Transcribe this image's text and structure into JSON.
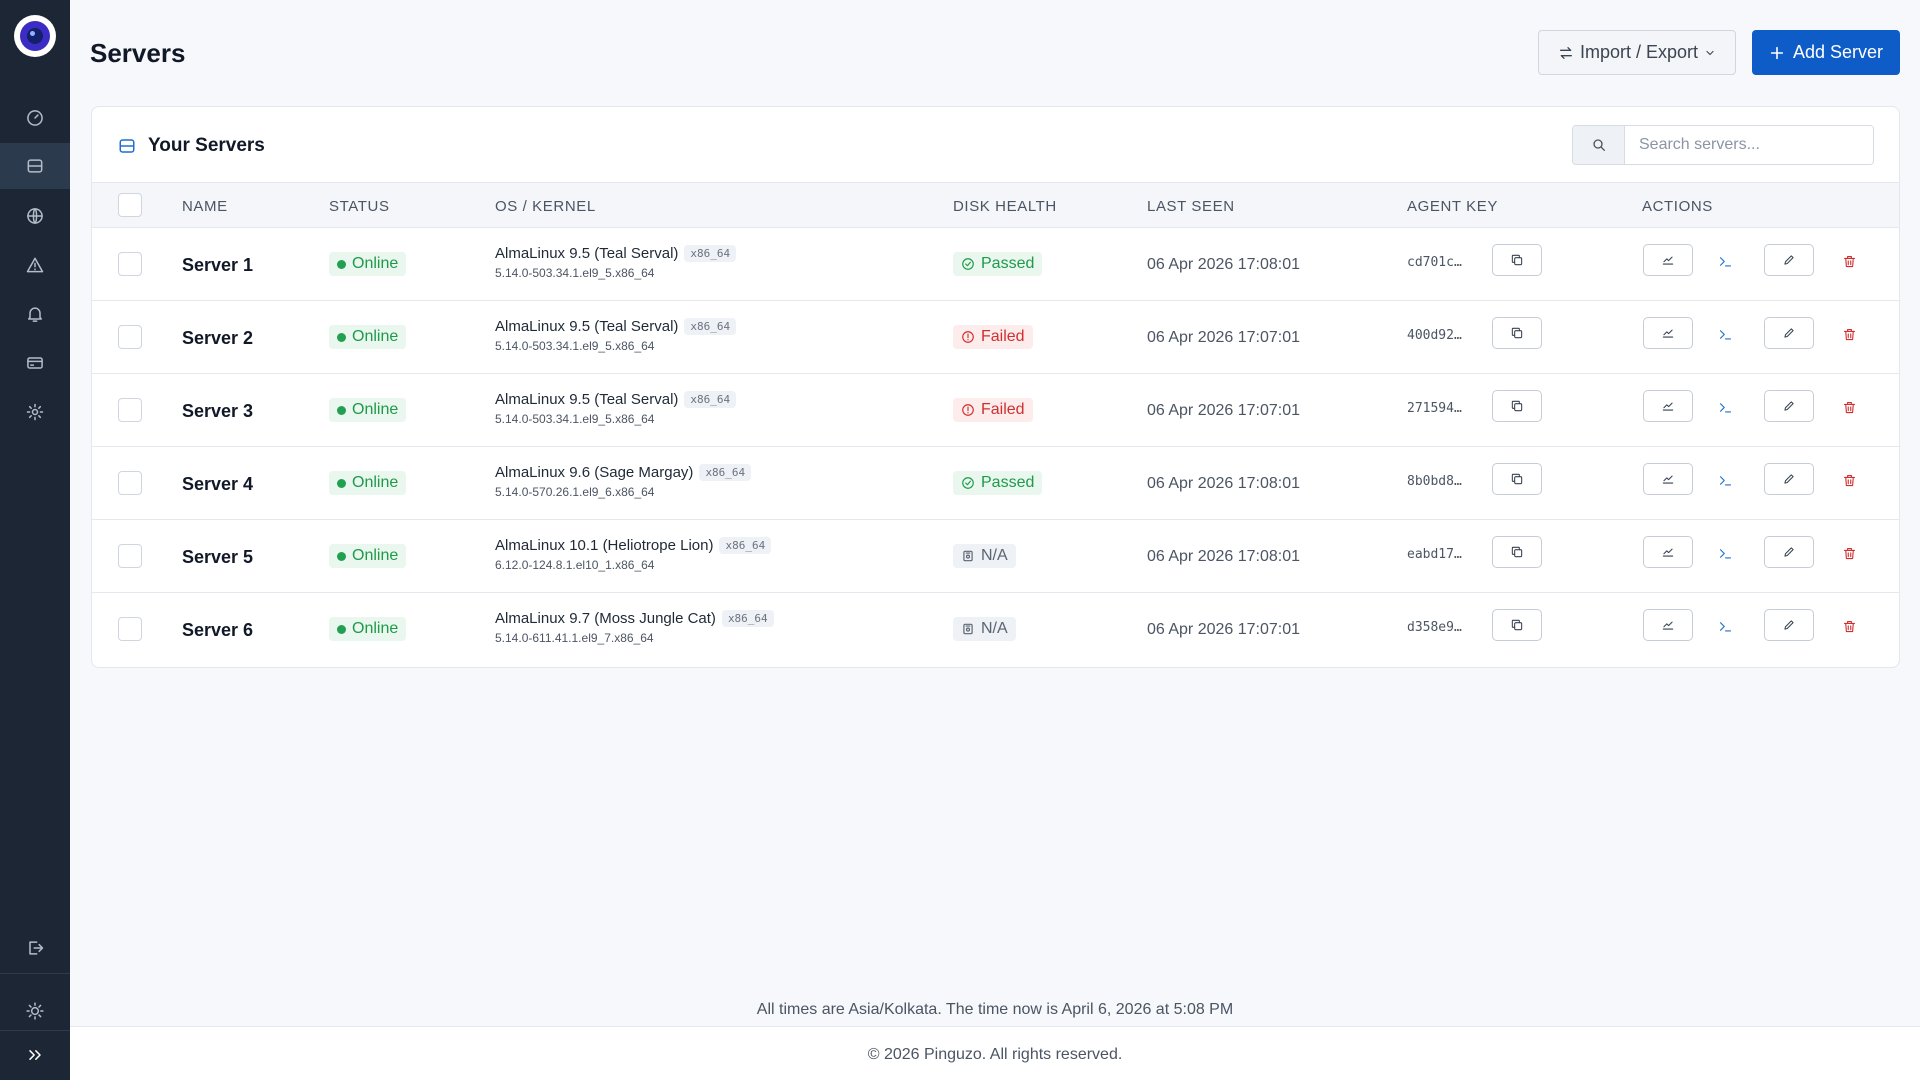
{
  "sidebar": {
    "logo": "pinguzo-logo",
    "items": [
      {
        "icon": "dashboard-icon"
      },
      {
        "icon": "servers-icon",
        "active": true
      },
      {
        "icon": "globe-icon"
      },
      {
        "icon": "alert-triangle-icon"
      },
      {
        "icon": "bell-icon"
      },
      {
        "icon": "billing-card-icon"
      },
      {
        "icon": "settings-gear-icon"
      }
    ],
    "bottom": [
      "logout-icon",
      "theme-sun-icon",
      "expand-chevrons-icon"
    ]
  },
  "header": {
    "title": "Servers",
    "import_export_label": "Import / Export",
    "add_server_label": "Add Server"
  },
  "card": {
    "title": "Your Servers",
    "search_placeholder": "Search servers..."
  },
  "table": {
    "columns": [
      "NAME",
      "STATUS",
      "OS / KERNEL",
      "DISK HEALTH",
      "LAST SEEN",
      "AGENT KEY",
      "ACTIONS"
    ],
    "rows": [
      {
        "name": "Server 1",
        "status": "Online",
        "os": "AlmaLinux 9.5 (Teal Serval)",
        "arch": "x86_64",
        "kernel": "5.14.0-503.34.1.el9_5.x86_64",
        "disk": "Passed",
        "last_seen": "06 Apr 2026 17:08:01",
        "agent_key": "cd701c…"
      },
      {
        "name": "Server 2",
        "status": "Online",
        "os": "AlmaLinux 9.5 (Teal Serval)",
        "arch": "x86_64",
        "kernel": "5.14.0-503.34.1.el9_5.x86_64",
        "disk": "Failed",
        "last_seen": "06 Apr 2026 17:07:01",
        "agent_key": "400d92…"
      },
      {
        "name": "Server 3",
        "status": "Online",
        "os": "AlmaLinux 9.5 (Teal Serval)",
        "arch": "x86_64",
        "kernel": "5.14.0-503.34.1.el9_5.x86_64",
        "disk": "Failed",
        "last_seen": "06 Apr 2026 17:07:01",
        "agent_key": "271594…"
      },
      {
        "name": "Server 4",
        "status": "Online",
        "os": "AlmaLinux 9.6 (Sage Margay)",
        "arch": "x86_64",
        "kernel": "5.14.0-570.26.1.el9_6.x86_64",
        "disk": "Passed",
        "last_seen": "06 Apr 2026 17:08:01",
        "agent_key": "8b0bd8…"
      },
      {
        "name": "Server 5",
        "status": "Online",
        "os": "AlmaLinux 10.1 (Heliotrope Lion)",
        "arch": "x86_64",
        "kernel": "6.12.0-124.8.1.el10_1.x86_64",
        "disk": "N/A",
        "last_seen": "06 Apr 2026 17:08:01",
        "agent_key": "eabd17…"
      },
      {
        "name": "Server 6",
        "status": "Online",
        "os": "AlmaLinux 9.7 (Moss Jungle Cat)",
        "arch": "x86_64",
        "kernel": "5.14.0-611.41.1.el9_7.x86_64",
        "disk": "N/A",
        "last_seen": "06 Apr 2026 17:07:01",
        "agent_key": "d358e9…"
      }
    ]
  },
  "footer": {
    "timezone_note": "All times are Asia/Kolkata. The time now is April 6, 2026 at 5:08 PM",
    "copyright": "© 2026 Pinguzo. All rights reserved."
  },
  "colors": {
    "sidebar_bg": "#1c2634",
    "primary": "#0d5cc7",
    "success": "#1e9a4a",
    "danger": "#d12f2f",
    "terminal_accent": "#1f6fd1"
  }
}
